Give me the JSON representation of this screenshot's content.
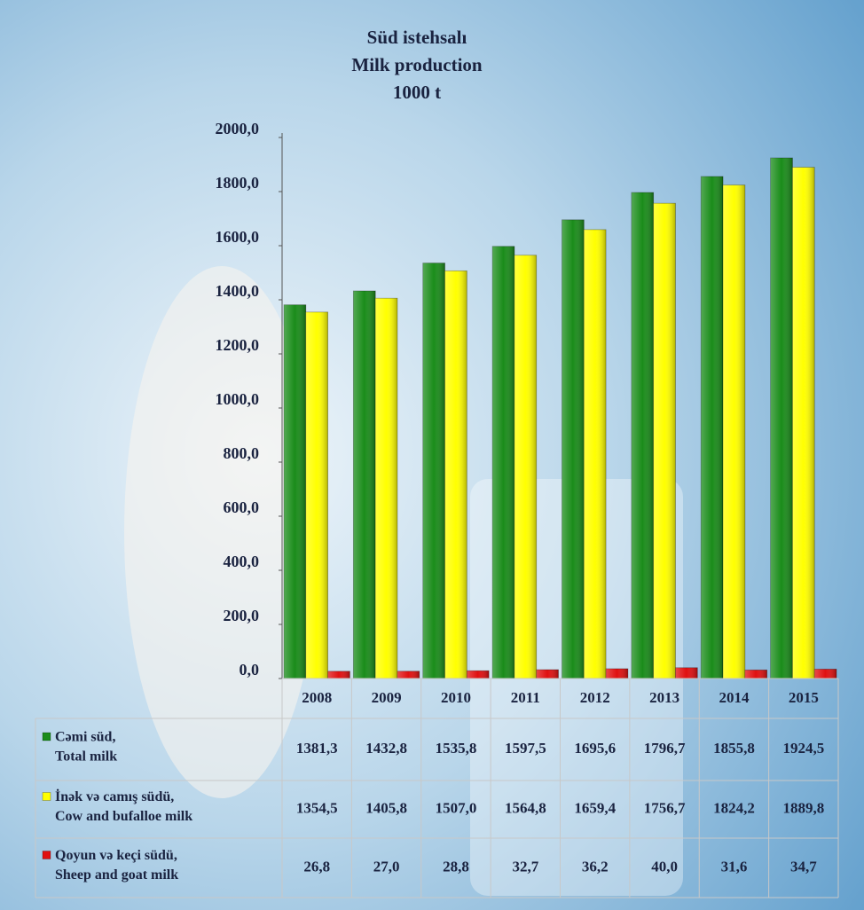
{
  "chart_data": {
    "type": "bar",
    "title": [
      "Süd istehsalı",
      "Milk production",
      "1000 t"
    ],
    "categories": [
      "2008",
      "2009",
      "2010",
      "2011",
      "2012",
      "2013",
      "2014",
      "2015"
    ],
    "series": [
      {
        "name": [
          "Cəmi süd,",
          "Total milk"
        ],
        "color": "#1a8c1a",
        "values": [
          1381.3,
          1432.8,
          1535.8,
          1597.5,
          1695.6,
          1796.7,
          1855.8,
          1924.5
        ],
        "value_labels": [
          "1381,3",
          "1432,8",
          "1535,8",
          "1597,5",
          "1695,6",
          "1796,7",
          "1855,8",
          "1924,5"
        ]
      },
      {
        "name": [
          "İnək və camış südü,",
          "Cow and bufalloe milk"
        ],
        "color": "#ffff00",
        "values": [
          1354.5,
          1405.8,
          1507.0,
          1564.8,
          1659.4,
          1756.7,
          1824.2,
          1889.8
        ],
        "value_labels": [
          "1354,5",
          "1405,8",
          "1507,0",
          "1564,8",
          "1659,4",
          "1756,7",
          "1824,2",
          "1889,8"
        ]
      },
      {
        "name": [
          "Qoyun və keçi südü,",
          "Sheep and goat milk"
        ],
        "color": "#e01010",
        "values": [
          26.8,
          27.0,
          28.8,
          32.7,
          36.2,
          40.0,
          31.6,
          34.7
        ],
        "value_labels": [
          "26,8",
          "27,0",
          "28,8",
          "32,7",
          "36,2",
          "40,0",
          "31,6",
          "34,7"
        ]
      }
    ],
    "ylim": [
      0,
      2000
    ],
    "yticks": [
      {
        "value": 0,
        "label": "0,0"
      },
      {
        "value": 200,
        "label": "200,0"
      },
      {
        "value": 400,
        "label": "400,0"
      },
      {
        "value": 600,
        "label": "600,0"
      },
      {
        "value": 800,
        "label": "800,0"
      },
      {
        "value": 1000,
        "label": "1000,0"
      },
      {
        "value": 1200,
        "label": "1200,0"
      },
      {
        "value": 1400,
        "label": "1400,0"
      },
      {
        "value": 1600,
        "label": "1600,0"
      },
      {
        "value": 1800,
        "label": "1800,0"
      },
      {
        "value": 2000,
        "label": "2000,0"
      }
    ],
    "grid": false
  }
}
